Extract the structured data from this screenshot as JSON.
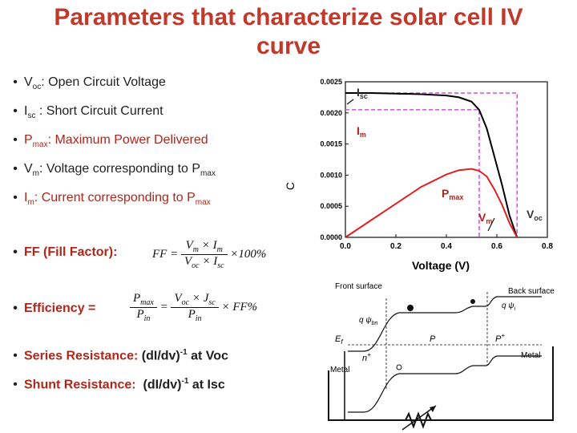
{
  "title": "Parameters that characterize solar cell IV curve",
  "bullets": {
    "voc": {
      "sym": "V",
      "sub": "oc",
      "text": ": Open Circuit Voltage"
    },
    "isc": {
      "sym": "I",
      "sub": "sc",
      "text": " : Short Circuit Current"
    },
    "pmax": {
      "sym": "P",
      "sub": "max",
      "text": ": Maximum Power Delivered"
    },
    "vm": {
      "sym": "V",
      "sub": "m",
      "text": ": Voltage corresponding to P",
      "tail": "max"
    },
    "im": {
      "sym": "I",
      "sub": "m",
      "text": ": Current corresponding to P",
      "tail": "max"
    },
    "ff": {
      "label": "FF (Fill Factor):"
    },
    "eff": {
      "label": "Efficiency ="
    },
    "rs": {
      "label": "Series Resistance:",
      "expr": "(dI/dv)",
      "sup": "-1",
      "tail": " at Voc"
    },
    "rsh": {
      "label": "Shunt Resistance:",
      "expr": "(dI/dv)",
      "sup": "-1",
      "tail": " at Isc"
    }
  },
  "formulas": {
    "ff_lhs": "FF =",
    "ff_num": "V",
    "ff_num_sub": "m",
    "ff_num_mid": " × I",
    "ff_num_sub2": "m",
    "ff_den": "V",
    "ff_den_sub": "oc",
    "ff_den_mid": " × I",
    "ff_den_sub2": "sc",
    "ff_rhs": "×100%",
    "eff_n1": "P",
    "eff_n1_sub": "max",
    "eff_d1": "P",
    "eff_d1_sub": "in",
    "eff_eq": "=",
    "eff_n2": "V",
    "eff_n2_sub": "oc",
    "eff_n2_mid": " × J",
    "eff_n2_sub2": "sc",
    "eff_d2": "P",
    "eff_d2_sub": "in",
    "eff_rhs": "× FF%"
  },
  "colors": {
    "title": "#c0392b",
    "accent": "#b0261b",
    "guide": "#d946ef",
    "power": "#e02020"
  },
  "chart_data": {
    "type": "line",
    "xlabel": "Voltage (V)",
    "ylabel": "C",
    "xlim": [
      0.0,
      0.8
    ],
    "ylim": [
      0.0,
      0.0025
    ],
    "xticks": [
      "0.0",
      "0.2",
      "0.4",
      "0.6",
      "0.8"
    ],
    "yticks": [
      "0.0000",
      "0.0005",
      "0.0010",
      "0.0015",
      "0.0020",
      "0.0025"
    ],
    "series": [
      {
        "name": "I",
        "color": "#000000",
        "x": [
          0.0,
          0.1,
          0.2,
          0.3,
          0.4,
          0.45,
          0.5,
          0.53,
          0.56,
          0.59,
          0.62,
          0.65,
          0.68
        ],
        "y": [
          0.00232,
          0.00232,
          0.00231,
          0.0023,
          0.00228,
          0.00225,
          0.00218,
          0.00205,
          0.00175,
          0.0013,
          0.00085,
          0.00035,
          0.0
        ]
      },
      {
        "name": "P",
        "color": "#e02020",
        "x": [
          0.0,
          0.1,
          0.2,
          0.3,
          0.4,
          0.45,
          0.5,
          0.53,
          0.56,
          0.59,
          0.62,
          0.65,
          0.68
        ],
        "y": [
          0.0,
          0.00027,
          0.00054,
          0.00081,
          0.00101,
          0.00108,
          0.0011,
          0.00107,
          0.00098,
          0.00077,
          0.00053,
          0.00023,
          0.0
        ]
      }
    ],
    "annotations": {
      "isc": "I",
      "isc_sub": "sc",
      "im": "I",
      "im_sub": "m",
      "pmax": "P",
      "pmax_sub": "max",
      "vm": "V",
      "vm_sub": "m",
      "voc": "V",
      "voc_sub": "oc"
    },
    "guides": {
      "isc": 0.00232,
      "im": 0.00205,
      "vm": 0.53,
      "voc": 0.68
    }
  },
  "band": {
    "front": "Front surface",
    "back": "Back surface",
    "ef": "E",
    "ef_sub": "f",
    "p": "P",
    "pplus": "P",
    "pplus_sup": "+",
    "nplus": "n",
    "nplus_sup": "+",
    "metal_left": "Metal",
    "metal_right": "Metal",
    "qpsi_left": "q ψ",
    "qpsi_left_sub": "bn",
    "qpsi_right": "q ψ",
    "qpsi_right_sub": "i"
  }
}
